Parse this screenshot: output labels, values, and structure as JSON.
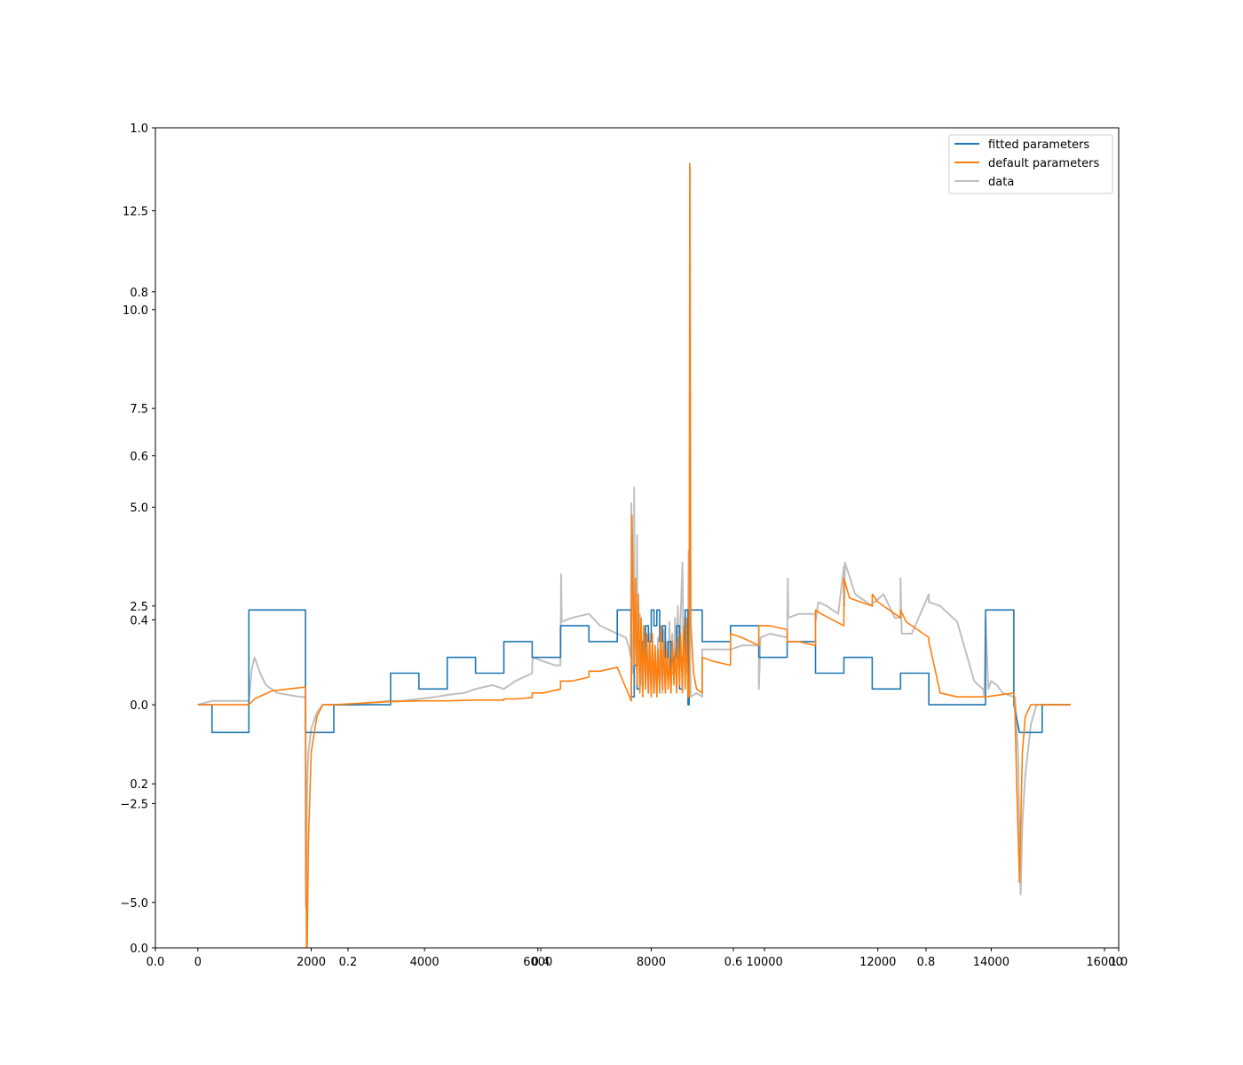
{
  "chart_data": {
    "type": "line",
    "title": "",
    "xlabel": "",
    "ylabel": "",
    "legend_position": "top-right",
    "grid": false,
    "x_range": [
      -750,
      16250
    ],
    "y_range": [
      -6.15,
      14.6
    ],
    "secondary_axes_range": [
      0.0,
      1.0
    ],
    "x_ticks": [
      0,
      2000,
      4000,
      6000,
      8000,
      10000,
      12000,
      14000,
      16000
    ],
    "x_tick_labels": [
      "0",
      "2000",
      "4000",
      "6000",
      "8000",
      "10000",
      "12000",
      "14000",
      "16000"
    ],
    "y_ticks": [
      -5.0,
      -2.5,
      0.0,
      2.5,
      5.0,
      7.5,
      10.0,
      12.5
    ],
    "y_tick_labels": [
      "−5.0",
      "−2.5",
      "0.0",
      "2.5",
      "5.0",
      "7.5",
      "10.0",
      "12.5"
    ],
    "secondary_ticks": [
      0.0,
      0.2,
      0.4,
      0.6,
      0.8,
      1.0
    ],
    "secondary_tick_labels": [
      "0.0",
      "0.2",
      "0.4",
      "0.6",
      "0.8",
      "1.0"
    ],
    "series": [
      {
        "name": "fitted parameters",
        "color": "#1f77b4",
        "x": [
          0,
          250,
          250,
          900,
          900,
          1900,
          1900,
          2400,
          2400,
          3400,
          3400,
          3900,
          3900,
          4400,
          4400,
          4900,
          4900,
          5400,
          5400,
          5900,
          5900,
          6400,
          6400,
          6900,
          6900,
          7400,
          7400,
          7650,
          7650,
          7700,
          7700,
          7750,
          7750,
          7800,
          7800,
          7850,
          7850,
          7900,
          7900,
          7950,
          7950,
          8000,
          8000,
          8050,
          8050,
          8100,
          8100,
          8150,
          8150,
          8200,
          8200,
          8250,
          8250,
          8300,
          8300,
          8350,
          8350,
          8400,
          8400,
          8450,
          8450,
          8500,
          8500,
          8550,
          8550,
          8600,
          8600,
          8650,
          8650,
          8670,
          8670,
          8900,
          8900,
          9400,
          9400,
          9900,
          9900,
          10400,
          10400,
          10900,
          10900,
          11400,
          11400,
          11900,
          11900,
          12400,
          12400,
          12900,
          12900,
          13400,
          13400,
          13900,
          13900,
          14400,
          14400,
          14500,
          14900,
          14900,
          15400
        ],
        "y": [
          0.0,
          0.0,
          -0.7,
          -0.7,
          2.4,
          2.4,
          -0.7,
          -0.7,
          0.0,
          0.0,
          0.8,
          0.8,
          0.4,
          0.4,
          1.2,
          1.2,
          0.8,
          0.8,
          1.6,
          1.6,
          1.2,
          1.2,
          2.0,
          2.0,
          1.6,
          1.6,
          2.4,
          2.4,
          0.2,
          0.2,
          1.0,
          1.0,
          0.4,
          0.4,
          1.6,
          1.6,
          1.2,
          1.2,
          2.0,
          2.0,
          1.6,
          1.6,
          2.4,
          2.4,
          2.0,
          2.0,
          2.4,
          2.4,
          1.6,
          1.6,
          2.0,
          2.0,
          1.2,
          1.2,
          1.6,
          1.6,
          0.8,
          0.8,
          1.2,
          1.2,
          2.0,
          2.0,
          0.4,
          0.4,
          1.2,
          1.2,
          2.4,
          2.4,
          0.0,
          0.0,
          2.4,
          2.4,
          1.6,
          1.6,
          2.0,
          2.0,
          1.2,
          1.2,
          1.6,
          1.6,
          0.8,
          0.8,
          1.2,
          1.2,
          0.4,
          0.4,
          0.8,
          0.8,
          0.0,
          0.0,
          0.0,
          0.0,
          2.4,
          2.4,
          0.0,
          -0.7,
          -0.7,
          0.0,
          0.0
        ]
      },
      {
        "name": "default parameters",
        "color": "#ff7f0e",
        "x": [
          0,
          250,
          500,
          900,
          1000,
          1300,
          1600,
          1900,
          1920,
          1950,
          2000,
          2100,
          2200,
          2400,
          3000,
          3400,
          3900,
          4400,
          4900,
          5400,
          5400,
          5600,
          5900,
          5900,
          6100,
          6400,
          6400,
          6600,
          6900,
          6900,
          7100,
          7400,
          7650,
          7660,
          7700,
          7720,
          7750,
          7770,
          7800,
          7820,
          7850,
          7870,
          7900,
          7920,
          7950,
          7970,
          8000,
          8020,
          8050,
          8070,
          8100,
          8120,
          8150,
          8170,
          8200,
          8220,
          8250,
          8270,
          8300,
          8320,
          8350,
          8370,
          8400,
          8420,
          8450,
          8470,
          8500,
          8520,
          8550,
          8570,
          8600,
          8620,
          8650,
          8670,
          8680,
          8700,
          8750,
          8800,
          8900,
          8900,
          9100,
          9400,
          9400,
          9600,
          9900,
          9900,
          10100,
          10400,
          10400,
          10600,
          10900,
          10900,
          11000,
          11400,
          11400,
          11500,
          11900,
          11900,
          12000,
          12400,
          12400,
          12500,
          12900,
          12900,
          13100,
          13400,
          13900,
          14400,
          14420,
          14450,
          14500,
          14550,
          14600,
          14700,
          14800,
          14900,
          15400
        ],
        "y": [
          0.0,
          0.0,
          0.0,
          0.0,
          0.15,
          0.35,
          0.4,
          0.45,
          -7.3,
          -3.5,
          -1.2,
          -0.3,
          0.0,
          0.0,
          0.05,
          0.08,
          0.1,
          0.1,
          0.12,
          0.12,
          0.15,
          0.15,
          0.18,
          0.3,
          0.3,
          0.4,
          0.6,
          0.6,
          0.7,
          0.85,
          0.85,
          0.95,
          0.1,
          4.8,
          1.0,
          3.2,
          0.5,
          2.8,
          0.3,
          2.2,
          0.2,
          2.0,
          0.4,
          1.8,
          0.3,
          1.6,
          0.2,
          1.8,
          0.3,
          1.5,
          0.2,
          1.4,
          0.3,
          2.0,
          0.4,
          1.6,
          0.3,
          1.4,
          0.4,
          1.2,
          0.3,
          1.6,
          0.5,
          1.4,
          0.3,
          1.7,
          0.5,
          1.8,
          0.3,
          2.0,
          0.4,
          2.2,
          0.2,
          0.2,
          13.7,
          2.0,
          0.8,
          0.4,
          0.3,
          1.2,
          1.1,
          1.0,
          1.8,
          1.7,
          1.5,
          2.0,
          2.0,
          1.9,
          1.6,
          1.6,
          1.5,
          2.4,
          2.3,
          2.0,
          3.2,
          2.7,
          2.5,
          2.8,
          2.6,
          2.2,
          2.4,
          2.1,
          1.7,
          1.6,
          0.3,
          0.2,
          0.2,
          0.3,
          -0.2,
          -2.0,
          -4.5,
          -1.2,
          -0.3,
          0.0,
          0.0,
          0.0,
          0.0
        ]
      },
      {
        "name": "data",
        "color": "#bfbfbf",
        "x": [
          0,
          250,
          500,
          800,
          900,
          950,
          1000,
          1100,
          1200,
          1400,
          1600,
          1800,
          1900,
          1900,
          1905,
          1915,
          1930,
          1950,
          2000,
          2100,
          2200,
          2400,
          2600,
          2800,
          3000,
          3400,
          3600,
          3900,
          4200,
          4400,
          4700,
          4900,
          5200,
          5400,
          5600,
          5900,
          5900,
          5910,
          6100,
          6300,
          6400,
          6410,
          6420,
          6600,
          6900,
          7100,
          7400,
          7550,
          7600,
          7640,
          7650,
          7655,
          7670,
          7690,
          7700,
          7705,
          7715,
          7740,
          7750,
          7760,
          7770,
          7790,
          7800,
          7810,
          7830,
          7850,
          7870,
          7900,
          7920,
          7950,
          7970,
          8000,
          8020,
          8050,
          8070,
          8100,
          8120,
          8150,
          8170,
          8200,
          8220,
          8250,
          8270,
          8300,
          8320,
          8350,
          8370,
          8400,
          8420,
          8450,
          8470,
          8500,
          8520,
          8550,
          8570,
          8590,
          8610,
          8630,
          8650,
          8660,
          8670,
          8675,
          8680,
          8685,
          8690,
          8700,
          8800,
          8900,
          8900,
          9100,
          9400,
          9600,
          9900,
          9900,
          9930,
          10100,
          10400,
          10400,
          10410,
          10420,
          10600,
          10900,
          10900,
          10950,
          11100,
          11300,
          11400,
          11400,
          11410,
          11420,
          11600,
          11900,
          11900,
          11950,
          12100,
          12300,
          12400,
          12400,
          12410,
          12420,
          12600,
          12900,
          12900,
          13100,
          13400,
          13700,
          13850,
          13860,
          13870,
          13880,
          13900,
          13950,
          14000,
          14100,
          14200,
          14400,
          14420,
          14450,
          14480,
          14500,
          14520,
          14550,
          14600,
          14700,
          14800,
          14900,
          15100,
          15400
        ],
        "y": [
          0.0,
          0.1,
          0.1,
          0.1,
          0.1,
          0.9,
          1.2,
          0.8,
          0.5,
          0.3,
          0.25,
          0.2,
          0.2,
          -4.2,
          -5.1,
          -3.5,
          -2.0,
          -1.2,
          -0.6,
          -0.2,
          0.0,
          0.0,
          0.0,
          0.0,
          0.05,
          0.1,
          0.1,
          0.15,
          0.2,
          0.25,
          0.3,
          0.4,
          0.5,
          0.4,
          0.6,
          0.8,
          1.0,
          1.2,
          1.1,
          1.0,
          1.0,
          3.3,
          2.1,
          2.2,
          2.3,
          2.0,
          1.8,
          1.7,
          1.5,
          1.2,
          5.1,
          2.0,
          0.8,
          1.5,
          5.5,
          1.5,
          2.0,
          0.9,
          4.3,
          1.0,
          2.6,
          0.8,
          2.3,
          0.5,
          1.5,
          0.4,
          2.0,
          0.5,
          1.6,
          0.3,
          1.8,
          0.4,
          1.5,
          0.3,
          1.2,
          0.4,
          1.7,
          0.5,
          1.4,
          0.3,
          1.9,
          0.4,
          1.6,
          0.6,
          2.1,
          0.5,
          1.8,
          0.7,
          2.2,
          0.8,
          2.5,
          0.6,
          2.2,
          3.6,
          1.5,
          2.2,
          0.8,
          1.8,
          1.2,
          3.9,
          2.6,
          0.3,
          0.2,
          13.6,
          1.0,
          0.2,
          0.3,
          0.2,
          1.4,
          1.4,
          1.4,
          1.5,
          1.5,
          0.4,
          1.7,
          1.8,
          1.7,
          1.6,
          3.2,
          2.2,
          2.3,
          2.3,
          2.1,
          2.6,
          2.5,
          2.3,
          3.5,
          3.0,
          2.5,
          3.6,
          2.8,
          2.5,
          2.6,
          2.6,
          2.8,
          2.2,
          2.2,
          3.2,
          2.5,
          1.8,
          1.8,
          2.8,
          2.6,
          2.5,
          2.1,
          0.6,
          0.4,
          0.4,
          0.3,
          0.2,
          2.2,
          0.4,
          0.6,
          0.5,
          0.3,
          0.2,
          0.2,
          -0.5,
          -1.5,
          -3.5,
          -4.8,
          -3.0,
          -1.8,
          -0.5,
          0.0,
          0.0,
          0.0,
          0.0
        ]
      }
    ]
  }
}
